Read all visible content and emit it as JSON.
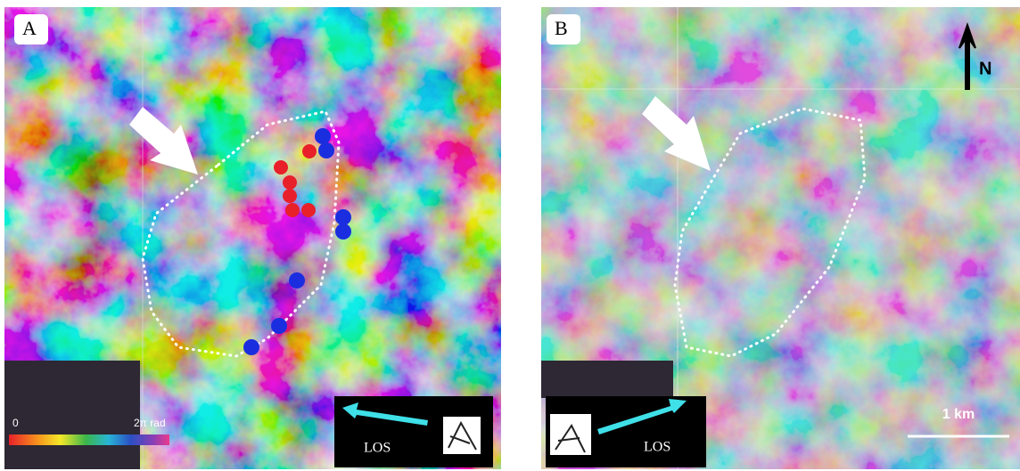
{
  "panels": [
    {
      "label": "A",
      "colorbar": {
        "min_label": "0",
        "max_label": "2π rad"
      },
      "los_label": "LOS"
    },
    {
      "label": "B",
      "north_label": "N",
      "scale_label": "1 km",
      "los_label": "LOS"
    }
  ]
}
